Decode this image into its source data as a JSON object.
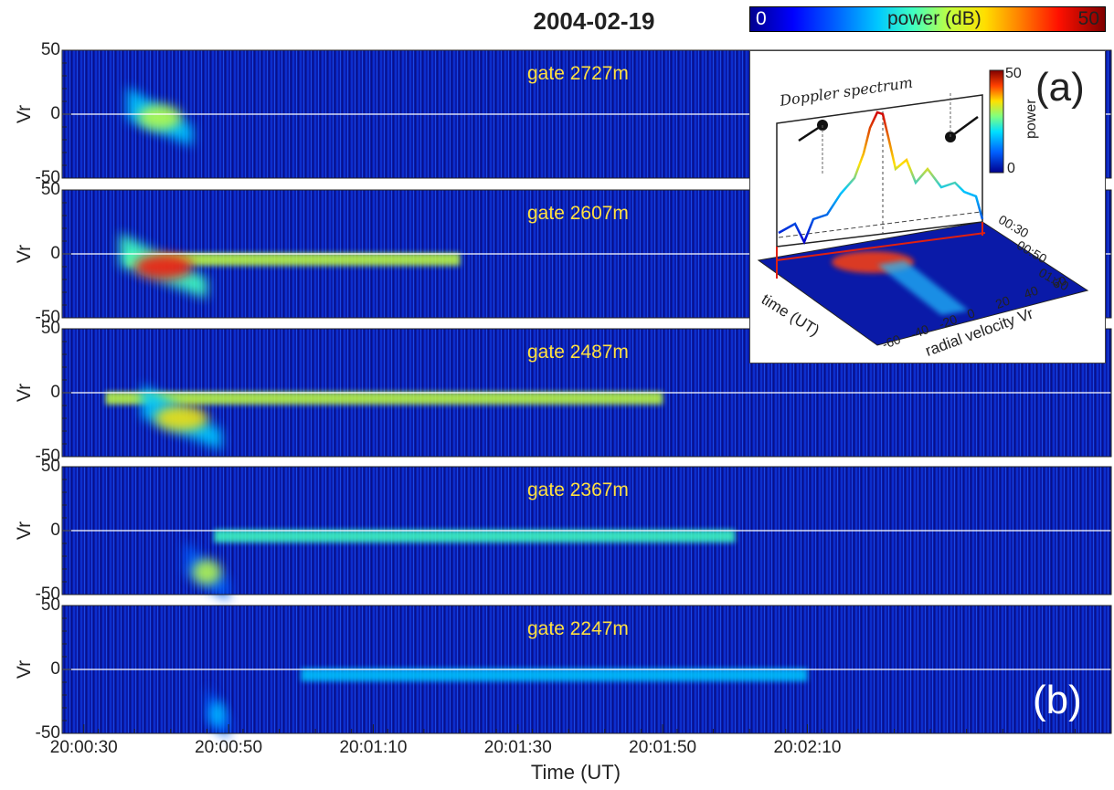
{
  "title": "2004-02-19",
  "colorbar": {
    "label": "power (dB)",
    "min": "0",
    "max": "50",
    "colors": [
      "#00008f",
      "#0000ff",
      "#0060ff",
      "#00c8ff",
      "#40ffc0",
      "#c0ff40",
      "#ffe000",
      "#ff8000",
      "#ff1000",
      "#800000"
    ]
  },
  "panel_label_main": "(b)",
  "panel_label_inset": "(a)",
  "chart_data": [
    {
      "type": "heatmap",
      "xlabel": "Time (UT)",
      "x_ticks": [
        "20:00:30",
        "20:00:50",
        "20:01:10",
        "20:01:30",
        "20:01:50",
        "20:02:10"
      ],
      "ylabel": "Vr",
      "y_ticks": [
        "50",
        "0",
        "-50"
      ],
      "ylim": [
        -50,
        50
      ],
      "colorbar": {
        "label": "power (dB)",
        "range": [
          0,
          50
        ]
      },
      "panels": [
        {
          "gate": "gate 2727m",
          "events": [
            {
              "t_start": "20:00:36",
              "t_end": "20:00:45",
              "vr_start": 10,
              "vr_end": -15,
              "peak_power": 30
            }
          ]
        },
        {
          "gate": "gate 2607m",
          "events": [
            {
              "t_start": "20:00:35",
              "t_end": "20:00:47",
              "vr_start": 5,
              "vr_end": -25,
              "peak_power": 42
            }
          ],
          "zero_band": {
            "t_start": "20:00:36",
            "t_end": "20:01:22",
            "power": 25
          }
        },
        {
          "gate": "gate 2487m",
          "events": [
            {
              "t_start": "20:00:38",
              "t_end": "20:00:49",
              "vr_start": -5,
              "vr_end": -35,
              "peak_power": 35
            }
          ],
          "zero_band": {
            "t_start": "20:00:33",
            "t_end": "20:01:50",
            "power": 28
          }
        },
        {
          "gate": "gate 2367m",
          "events": [
            {
              "t_start": "20:00:44",
              "t_end": "20:00:50",
              "vr_start": -20,
              "vr_end": -45,
              "peak_power": 25
            }
          ],
          "zero_band": {
            "t_start": "20:00:48",
            "t_end": "20:02:00",
            "power": 22
          }
        },
        {
          "gate": "gate 2247m",
          "events": [
            {
              "t_start": "20:00:47",
              "t_end": "20:00:50",
              "vr_start": -25,
              "vr_end": -45,
              "peak_power": 18
            }
          ],
          "zero_band": {
            "t_start": "20:01:00",
            "t_end": "20:02:10",
            "power": 15
          }
        }
      ]
    },
    {
      "type": "line",
      "title": "Doppler spectrum",
      "colorbar": {
        "label": "power",
        "ticks": [
          "0",
          "50"
        ]
      },
      "surface": {
        "xlabel": "radial velocity Vr",
        "x_ticks": [
          "-60",
          "-40",
          "-20",
          "0",
          "20",
          "40",
          "60"
        ],
        "ylabel": "time (UT)",
        "y_ticks": [
          "00:30",
          "00:50",
          "01:10"
        ]
      }
    }
  ]
}
